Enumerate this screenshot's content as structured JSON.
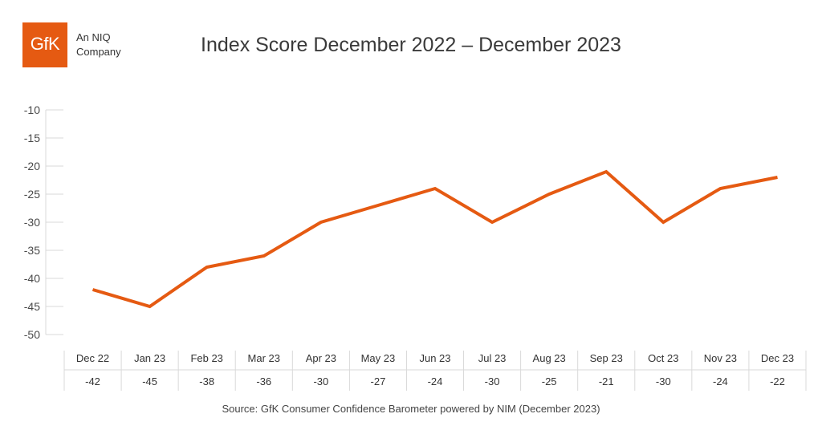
{
  "logo": {
    "mark": "GfK",
    "tagline": "An NIQ Company",
    "brand_color": "#e55a12"
  },
  "chart_data": {
    "type": "line",
    "title": "Index Score December 2022 – December 2023",
    "categories": [
      "Dec 22",
      "Jan 23",
      "Feb 23",
      "Mar 23",
      "Apr 23",
      "May 23",
      "Jun 23",
      "Jul 23",
      "Aug 23",
      "Sep 23",
      "Oct 23",
      "Nov 23",
      "Dec 23"
    ],
    "series": [
      {
        "values": [
          -42,
          -45,
          -38,
          -36,
          -30,
          -27,
          -24,
          -30,
          -25,
          -21,
          -30,
          -24,
          -22
        ],
        "color": "#e55a12"
      }
    ],
    "yticks": [
      -10,
      -15,
      -20,
      -25,
      -30,
      -35,
      -40,
      -45,
      -50
    ],
    "ylim": [
      -50,
      -10
    ],
    "grid": false,
    "data_table": true,
    "source": "Source: GfK Consumer Confidence Barometer powered by NIM (December 2023)"
  }
}
